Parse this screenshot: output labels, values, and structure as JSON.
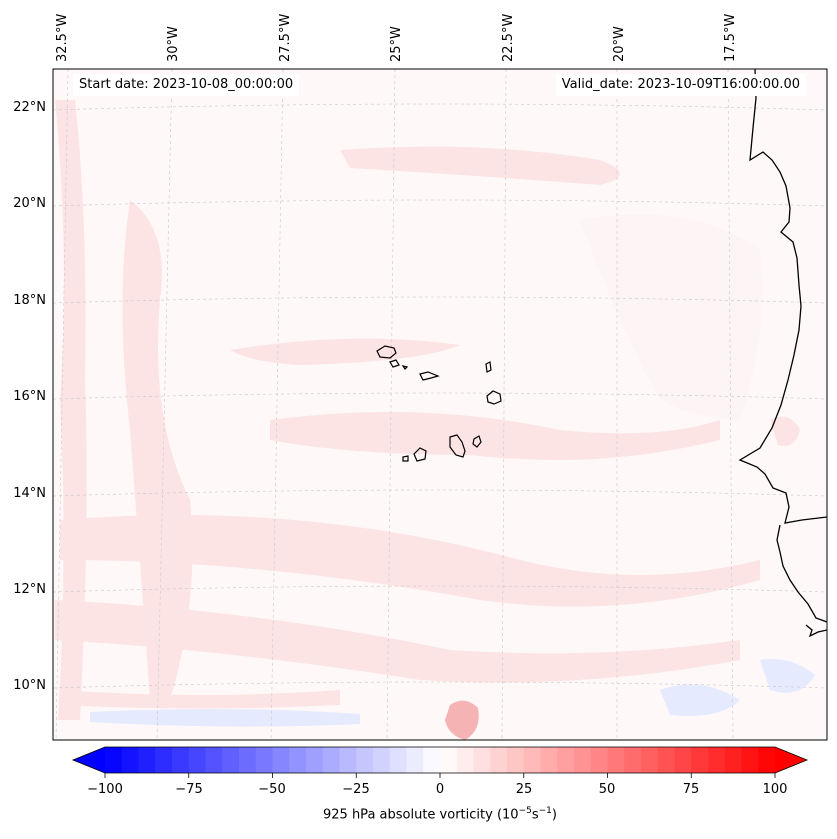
{
  "map": {
    "start_label": "Start date: 2023-10-08_00:00:00",
    "valid_label": "Valid_date: 2023-10-09T16:00:00.00",
    "lon_ticks": [
      "32.5°W",
      "30°W",
      "27.5°W",
      "25°W",
      "22.5°W",
      "20°W",
      "17.5°W"
    ],
    "lat_ticks": [
      "22°N",
      "20°N",
      "18°N",
      "16°N",
      "14°N",
      "12°N",
      "10°N"
    ],
    "field_colors": {
      "weak_positive": "#fde4e4",
      "faint_positive": "#fdf5f5",
      "negative": "#e6eaff",
      "strong_positive": "#f6b3b3"
    },
    "coastline_color": "#000000",
    "gridline_color": "#c8c8c8"
  },
  "colorbar": {
    "label_main": "925 hPa absolute vorticity (10",
    "label_exp1": "−5",
    "label_mid": "s",
    "label_exp2": "−1",
    "label_end": ")",
    "tick_labels": [
      "−100",
      "−75",
      "−50",
      "−25",
      "0",
      "25",
      "50",
      "75",
      "100"
    ],
    "min": -100,
    "max": 100,
    "step": 5,
    "colors": {
      "low": "#0000ff",
      "mid": "#ffffff",
      "high": "#ff0000"
    }
  }
}
